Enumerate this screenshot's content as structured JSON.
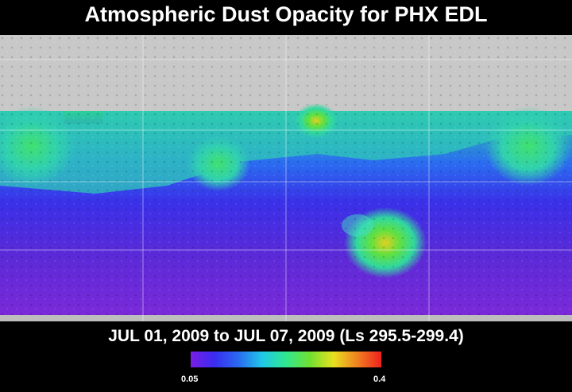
{
  "title": "Atmospheric Dust Opacity for PHX EDL",
  "subtitle": "JUL 01, 2009 to JUL 07, 2009 (Ls 295.5-299.4)",
  "colorbar": {
    "min_label": "0.05",
    "max_label": "0.4",
    "colors": [
      "#7a1ee6",
      "#3a2cf0",
      "#2a6af0",
      "#20c8e8",
      "#30e890",
      "#70e030",
      "#e8e020",
      "#f08020",
      "#f02020"
    ]
  },
  "map": {
    "polar_cap_color": "#c8c8c8",
    "high_dust_regions": [
      "north-midlatitude band",
      "southern mid-latitude patch"
    ]
  }
}
